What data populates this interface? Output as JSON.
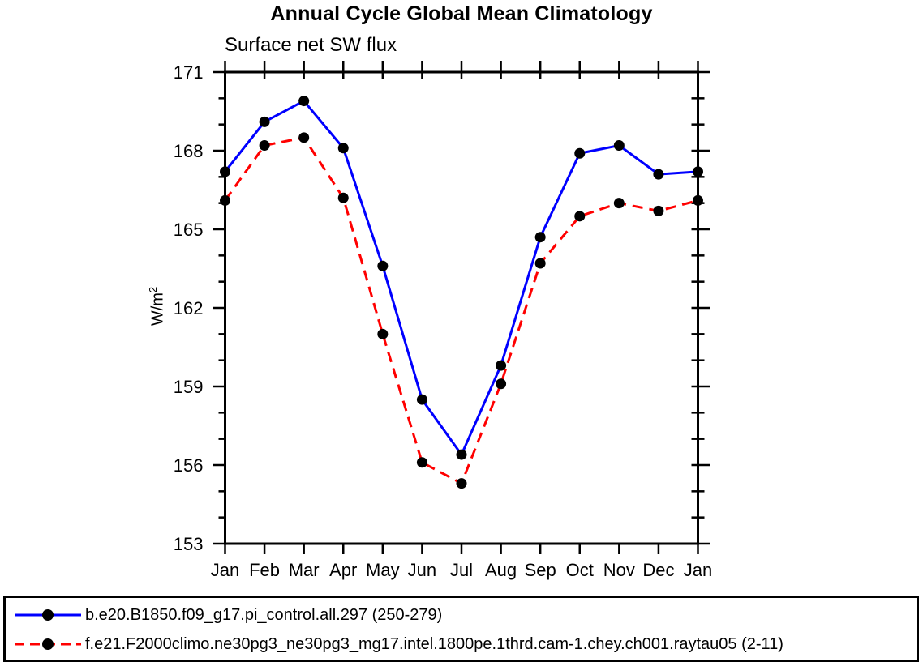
{
  "chart_data": {
    "type": "line",
    "title": "Annual Cycle Global Mean Climatology",
    "subtitle": "Surface net SW flux",
    "ylabel": "W/m²",
    "ylabel_base": "W/m",
    "ylabel_exponent": "2",
    "categories": [
      "Jan",
      "Feb",
      "Mar",
      "Apr",
      "May",
      "Jun",
      "Jul",
      "Aug",
      "Sep",
      "Oct",
      "Nov",
      "Dec",
      "Jan"
    ],
    "series": [
      {
        "name": "b.e20.B1850.f09_g17.pi_control.all.297 (250-279)",
        "color": "#0000ff",
        "line_style": "solid",
        "marker": "circle",
        "marker_color": "#000000",
        "values": [
          167.2,
          169.1,
          169.9,
          168.1,
          163.6,
          158.5,
          156.4,
          159.8,
          164.7,
          167.9,
          168.2,
          167.1,
          167.2
        ]
      },
      {
        "name": "f.e21.F2000climo.ne30pg3_ne30pg3_mg17.intel.1800pe.1thrd.cam-1.chey.ch001.raytau05 (2-11)",
        "color": "#ff0000",
        "line_style": "dashed",
        "marker": "circle",
        "marker_color": "#000000",
        "values": [
          166.1,
          168.2,
          168.5,
          166.2,
          161.0,
          156.1,
          155.3,
          159.1,
          163.7,
          165.5,
          166.0,
          165.7,
          166.1
        ]
      }
    ],
    "ylim": [
      153,
      171
    ],
    "yticks_major": [
      153,
      156,
      159,
      162,
      165,
      168,
      171
    ],
    "ytick_minor_step": 1,
    "grid": false,
    "axis_color": "#000000",
    "legend_position": "bottom"
  }
}
